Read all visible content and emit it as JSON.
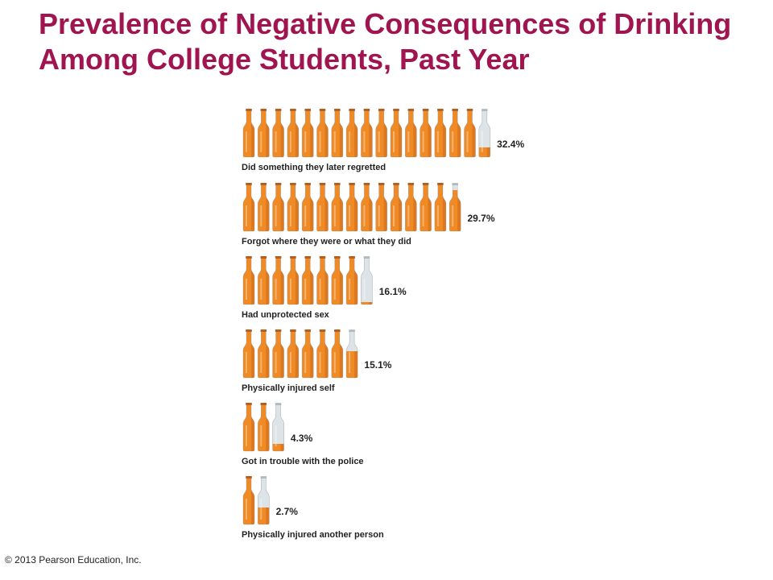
{
  "slide": {
    "title": "Prevalence of Negative Consequences of Drinking Among College Students, Past Year",
    "copyright": "© 2013 Pearson Education, Inc."
  },
  "colors": {
    "title": "#A0144F",
    "bottle_fill": "#F08A24",
    "bottle_shade": "#C4611A",
    "bottle_empty": "#DDE4E8",
    "text": "#222222"
  },
  "chart_data": {
    "type": "bar",
    "unit_note": "each full bottle represents 2%",
    "bottle_value": 2,
    "categories": [
      "Did something they later regretted",
      "Forgot where they were or what they did",
      "Had unprotected sex",
      "Physically injured self",
      "Got in trouble with the police",
      "Physically injured another person"
    ],
    "values": [
      32.4,
      29.7,
      16.1,
      15.1,
      4.3,
      2.7
    ],
    "value_labels": [
      "32.4%",
      "29.7%",
      "16.1%",
      "15.1%",
      "4.3%",
      "2.7%"
    ],
    "xlabel": "",
    "ylabel": ""
  }
}
